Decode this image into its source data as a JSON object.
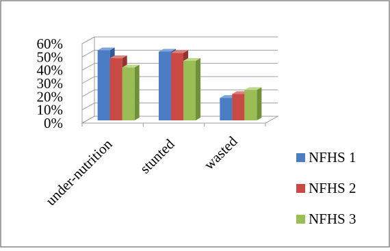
{
  "chart_data": {
    "type": "bar",
    "title": "",
    "xlabel": "",
    "ylabel": "",
    "categories": [
      "under-nutrition",
      "stunted",
      "wasted"
    ],
    "series": [
      {
        "name": "NFHS 1",
        "values": [
          53,
          52,
          17
        ],
        "color": "#4a7dc4",
        "side_color": "#2f5a96",
        "top_color": "#7fa5db"
      },
      {
        "name": "NFHS 2",
        "values": [
          47,
          51,
          20
        ],
        "color": "#c94a45",
        "side_color": "#943330",
        "top_color": "#dc817d"
      },
      {
        "name": "NFHS 3",
        "values": [
          40,
          45,
          23
        ],
        "color": "#9bbd55",
        "side_color": "#71903a",
        "top_color": "#bed98a"
      }
    ],
    "ylim": [
      0,
      60
    ],
    "yticks": [
      "0%",
      "10%",
      "20%",
      "30%",
      "40%",
      "50%",
      "60%"
    ],
    "grid": true,
    "legend_position": "right"
  }
}
